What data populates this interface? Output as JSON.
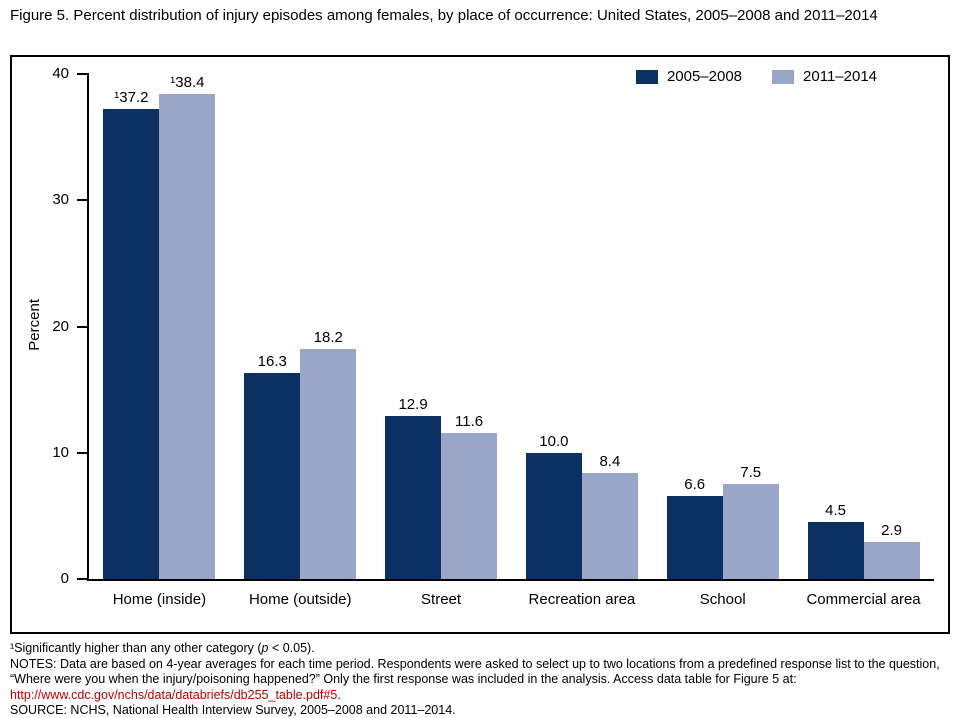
{
  "title": "Figure 5. Percent distribution of injury episodes among females, by place of occurrence: United States, 2005–2008 and 2011–2014",
  "chart_data": {
    "type": "bar",
    "categories": [
      "Home (inside)",
      "Home (outside)",
      "Street",
      "Recreation area",
      "School",
      "Commercial area"
    ],
    "series": [
      {
        "name": "2005–2008",
        "color": "#0c3061",
        "values": [
          37.2,
          16.3,
          12.9,
          10.0,
          6.6,
          4.5
        ],
        "labels": [
          "¹37.2",
          "16.3",
          "12.9",
          "10.0",
          "6.6",
          "4.5"
        ]
      },
      {
        "name": "2011–2014",
        "color": "#9aa6c7",
        "values": [
          38.4,
          18.2,
          11.6,
          8.4,
          7.5,
          2.9
        ],
        "labels": [
          "¹38.4",
          "18.2",
          "11.6",
          "8.4",
          "7.5",
          "2.9"
        ]
      }
    ],
    "title": "Figure 5. Percent distribution of injury episodes among females, by place of occurrence: United States, 2005–2008 and 2011–2014",
    "xlabel": "",
    "ylabel": "Percent",
    "ylim": [
      0,
      40
    ],
    "yticks": [
      0,
      10,
      20,
      30,
      40
    ],
    "grid": false,
    "legend_position": "top-right"
  },
  "footnotes": {
    "note1_pre": "¹Significantly higher than any other category (",
    "note1_italic": "p",
    "note1_post": " < 0.05).",
    "notes_text": "NOTES: Data are based on 4-year averages for each time period. Respondents were asked to select up to two locations from a predefined response list to the question, “Where were you when the injury/poisoning happened?” Only the first response was included in the analysis. Access data table for Figure 5 at: ",
    "link": "http://www.cdc.gov/nchs/data/databriefs/db255_table.pdf#5",
    "link_suffix": ".",
    "source": "SOURCE: NCHS, National Health Interview Survey, 2005–2008 and 2011–2014."
  }
}
